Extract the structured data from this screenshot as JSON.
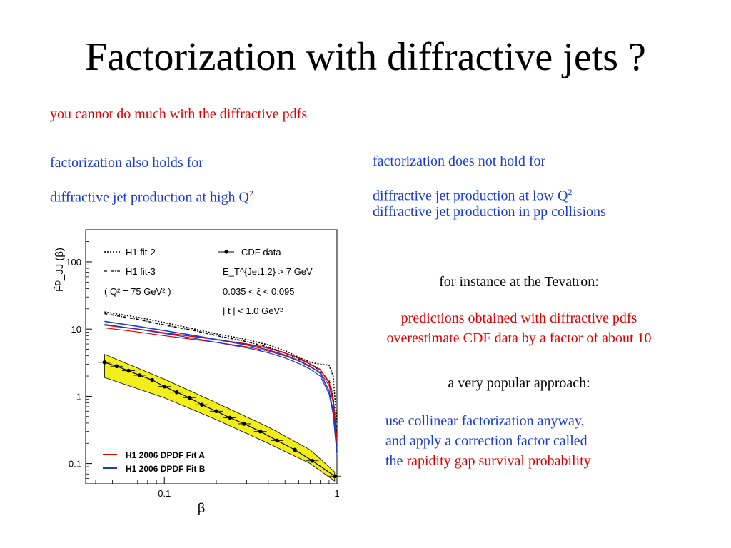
{
  "slide": {
    "title": "Factorization with diffractive jets ?",
    "intro": "you cannot do much with the diffractive pdfs",
    "left_line1": "factorization also holds for",
    "left_line2": "diffractive jet production at high Q",
    "right_line1": "factorization does not hold for",
    "right_line2": "diffractive jet production at low Q",
    "right_line3": "diffractive jet production in pp collisions",
    "sup": "2",
    "tevatron": "for instance at the Tevatron:",
    "pred_line1": "predictions obtained with diffractive pdfs",
    "pred_line2": "overestimate CDF data by a factor of about 10",
    "popular": "a very popular approach:",
    "use_line1": "use collinear factorization anyway,",
    "use_line2": "and apply a correction factor called",
    "use_line3_prefix": "the ",
    "use_line3_highlight": "rapidity gap survival probability"
  },
  "colors": {
    "red": "#e00000",
    "blue": "#1a3ccf",
    "band": "#f2ee1a"
  },
  "chart_data": {
    "type": "line",
    "xlabel": "β",
    "ylabel": "F̃ᴰ_JJ (β)",
    "xscale": "log",
    "yscale": "log",
    "xlim": [
      0.035,
      1
    ],
    "ylim": [
      0.05,
      300
    ],
    "xticks": [
      "0.1",
      "1"
    ],
    "yticks": [
      "0.1",
      "1",
      "10",
      "100"
    ],
    "legend": {
      "h1_fit2": "H1 fit-2",
      "h1_fit3": "H1 fit-3",
      "q2": "( Q² = 75 GeV² )",
      "cdf": "CDF data",
      "et": "E_T^{Jet1,2} > 7 GeV",
      "xi": "0.035 < ξ < 0.095",
      "t": "| t | < 1.0 GeV²",
      "fitA": "H1 2006 DPDF Fit A",
      "fitB": "H1 2006 DPDF Fit B"
    },
    "series": [
      {
        "name": "H1 fit-2",
        "color": "#000000",
        "style": "dotted",
        "x": [
          0.045,
          0.07,
          0.1,
          0.15,
          0.2,
          0.3,
          0.4,
          0.5,
          0.6,
          0.7,
          0.8,
          0.9,
          0.95,
          1.0
        ],
        "y": [
          18,
          15,
          12.5,
          10,
          8.5,
          7,
          5.8,
          4.8,
          3.8,
          3.2,
          3.0,
          2.9,
          2.0,
          0.4
        ]
      },
      {
        "name": "H1 fit-3",
        "color": "#000000",
        "style": "dashdot",
        "x": [
          0.045,
          0.07,
          0.1,
          0.15,
          0.2,
          0.3,
          0.4,
          0.5,
          0.6,
          0.7,
          0.8,
          0.9,
          0.95,
          1.0
        ],
        "y": [
          17,
          14,
          11.5,
          9.5,
          8,
          6.5,
          5.4,
          4.4,
          3.6,
          3.0,
          2.4,
          1.7,
          1.0,
          0.25
        ]
      },
      {
        "name": "H1 2006 DPDF Fit A",
        "color": "#e00000",
        "style": "solid",
        "x": [
          0.045,
          0.07,
          0.1,
          0.15,
          0.2,
          0.3,
          0.4,
          0.5,
          0.6,
          0.7,
          0.8,
          0.9,
          0.95,
          1.0
        ],
        "y": [
          11.5,
          10,
          8.8,
          7.7,
          7.0,
          6.0,
          5.2,
          4.4,
          3.7,
          3.0,
          2.5,
          1.6,
          0.9,
          0.22
        ]
      },
      {
        "name": "H1 2006 DPDF Fit B",
        "color": "#1a3ccf",
        "style": "solid",
        "x": [
          0.045,
          0.07,
          0.1,
          0.15,
          0.2,
          0.3,
          0.4,
          0.5,
          0.6,
          0.7,
          0.8,
          0.9,
          0.95,
          1.0
        ],
        "y": [
          13,
          11,
          9.5,
          8.0,
          7.0,
          5.8,
          4.9,
          4.1,
          3.4,
          2.8,
          2.2,
          1.2,
          0.6,
          0.15
        ]
      },
      {
        "name": "CDF data",
        "color": "#000000",
        "style": "markers",
        "x": [
          0.045,
          0.053,
          0.062,
          0.072,
          0.085,
          0.1,
          0.118,
          0.14,
          0.165,
          0.2,
          0.24,
          0.29,
          0.36,
          0.45,
          0.57,
          0.72,
          0.97
        ],
        "y": [
          3.2,
          2.8,
          2.4,
          2.05,
          1.75,
          1.4,
          1.15,
          0.95,
          0.75,
          0.6,
          0.48,
          0.39,
          0.3,
          0.22,
          0.16,
          0.11,
          0.065
        ]
      }
    ],
    "band": {
      "x": [
        0.045,
        0.1,
        0.2,
        0.4,
        0.7,
        0.97
      ],
      "low": [
        1.9,
        0.95,
        0.45,
        0.2,
        0.1,
        0.055
      ],
      "high": [
        4.2,
        1.8,
        0.8,
        0.35,
        0.16,
        0.075
      ]
    }
  }
}
